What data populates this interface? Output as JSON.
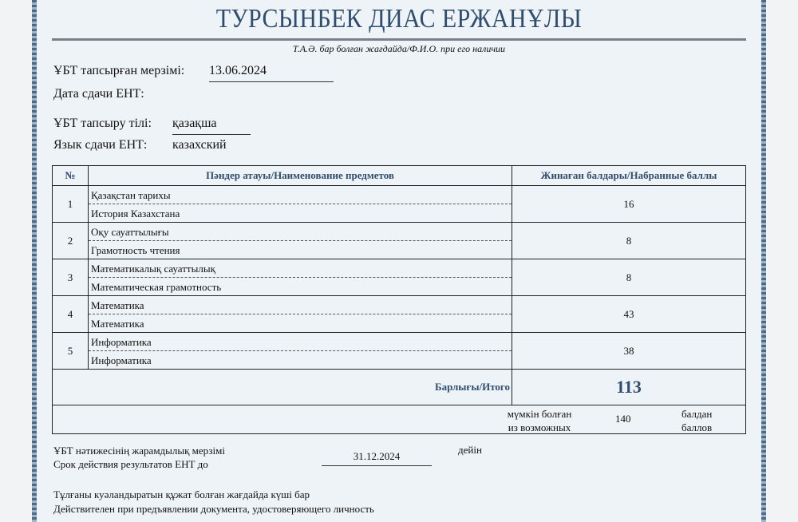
{
  "header": {
    "name": "ТУРСЫНБЕК ДИАС ЕРЖАНҰЛЫ",
    "subtitle": "Т.А.Ә. бар болған жағдайда/Ф.И.О. при его наличии"
  },
  "exam_date": {
    "label_kz": "ҰБТ тапсырған мерзімі:",
    "value": "13.06.2024",
    "label_ru": "Дата сдачи ЕНТ:"
  },
  "language": {
    "label_kz": "ҰБТ тапсыру тілі:",
    "value_kz": "қазақша",
    "label_ru": "Язык сдачи ЕНТ:",
    "value_ru": "казахский"
  },
  "table": {
    "headers": [
      "№",
      "Пәндер атауы/Наименование предметов",
      "Жинаған балдары/Набранные баллы"
    ],
    "rows": [
      {
        "no": "1",
        "kz": "Қазақстан тарихы",
        "ru": "История Казахстана",
        "score": "16"
      },
      {
        "no": "2",
        "kz": "Оқу сауаттылығы",
        "ru": "Грамотность чтения",
        "score": "8"
      },
      {
        "no": "3",
        "kz": "Математикалық сауаттылық",
        "ru": "Математическая грамотность",
        "score": "8"
      },
      {
        "no": "4",
        "kz": "Математика",
        "ru": "Математика",
        "score": "43"
      },
      {
        "no": "5",
        "kz": "Информатика",
        "ru": "Информатика",
        "score": "38"
      }
    ],
    "total_label": "Барлығы/Итого",
    "total": "113",
    "possible_kz": "мүмкін болған",
    "possible_ru": "из возможных",
    "possible": "140",
    "points_kz": "балдан",
    "points_ru": "баллов"
  },
  "validity": {
    "label_kz": "ҰБТ нәтижесінің жарамдылық мерзімі",
    "label_ru": "Срок действия результатов ЕНТ до",
    "value": "31.12.2024",
    "suffix": "дейін"
  },
  "note": {
    "kz": "Тұлғаны куәландыратын құжат болған жағдайда күші бар",
    "ru": "Действителен при предъявлении документа, удостоверяющего личность"
  }
}
